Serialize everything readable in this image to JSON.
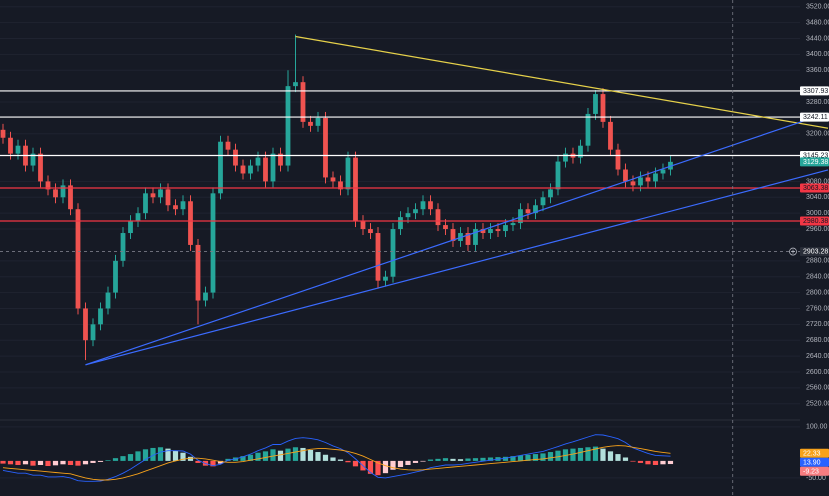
{
  "chart_data": {
    "type": "candlestick",
    "xlim": [
      -0.4,
      106.27
    ],
    "ylim": [
      2479,
      3537
    ],
    "yticks": [
      {
        "value": 3520,
        "label": "3520.00"
      },
      {
        "value": 3480,
        "label": "3480.00"
      },
      {
        "value": 3440,
        "label": "3440.00"
      },
      {
        "value": 3400,
        "label": "3400.00"
      },
      {
        "value": 3360,
        "label": "3360.00"
      },
      {
        "value": 3280,
        "label": "3280.00"
      },
      {
        "value": 3200,
        "label": "3200.00"
      },
      {
        "value": 3080,
        "label": "3080.00"
      },
      {
        "value": 3040,
        "label": "3040.00"
      },
      {
        "value": 3000,
        "label": "3000.00"
      },
      {
        "value": 2960,
        "label": "2960.00"
      },
      {
        "value": 2880,
        "label": "2880.00"
      },
      {
        "value": 2840,
        "label": "2840.00"
      },
      {
        "value": 2800,
        "label": "2800.00"
      },
      {
        "value": 2760,
        "label": "2760.00"
      },
      {
        "value": 2720,
        "label": "2720.00"
      },
      {
        "value": 2680,
        "label": "2680.00"
      },
      {
        "value": 2640,
        "label": "2640.00"
      },
      {
        "value": 2600,
        "label": "2600.00"
      },
      {
        "value": 2560,
        "label": "2560.00"
      },
      {
        "value": 2520,
        "label": "2520.00"
      }
    ],
    "grid": true,
    "up_color": "#26a69a",
    "down_color": "#ef5350",
    "open": [
      3210,
      3190,
      3150,
      3170,
      3120,
      3150,
      3080,
      3060,
      3040,
      3070,
      3010,
      2760,
      2680,
      2720,
      2760,
      2800,
      2880,
      2950,
      2980,
      3000,
      3050,
      3040,
      3060,
      3020,
      3010,
      3030,
      2920,
      2780,
      2800,
      3050,
      3180,
      3160,
      3120,
      3100,
      3120,
      3140,
      3080,
      3150,
      3120,
      3320,
      3330,
      3230,
      3220,
      3240,
      3090,
      3080,
      3060,
      3140,
      2980,
      2960,
      2950,
      2830,
      2840,
      2960,
      2990,
      3000,
      3010,
      3030,
      3010,
      2970,
      2960,
      2930,
      2950,
      2920,
      2960,
      2950,
      2960,
      2955,
      2970,
      2975,
      3010,
      3000,
      3020,
      3040,
      3060,
      3130,
      3150,
      3140,
      3170,
      3250,
      3300,
      3230,
      3160,
      3110,
      3080,
      3070,
      3090,
      3080,
      3100,
      3110
    ],
    "high": [
      3225,
      3205,
      3185,
      3185,
      3165,
      3165,
      3095,
      3075,
      3085,
      3085,
      3025,
      2775,
      2735,
      2775,
      2815,
      2895,
      2965,
      2995,
      3015,
      3065,
      3065,
      3075,
      3075,
      3035,
      3045,
      3045,
      2935,
      2815,
      3065,
      3195,
      3195,
      3175,
      3135,
      3135,
      3155,
      3155,
      3165,
      3165,
      3360,
      3450,
      3345,
      3245,
      3255,
      3255,
      3105,
      3095,
      3155,
      3155,
      2995,
      2975,
      2965,
      2855,
      2975,
      3005,
      3015,
      3025,
      3045,
      3045,
      3025,
      2985,
      2975,
      2965,
      2965,
      2975,
      2975,
      2975,
      2975,
      2985,
      2990,
      3025,
      3025,
      3035,
      3055,
      3075,
      3145,
      3165,
      3165,
      3185,
      3265,
      3310,
      3315,
      3245,
      3175,
      3125,
      3095,
      3105,
      3105,
      3115,
      3125,
      3145
    ],
    "low": [
      3175,
      3135,
      3135,
      3105,
      3105,
      3065,
      3045,
      3025,
      3025,
      2995,
      2745,
      2630,
      2665,
      2705,
      2745,
      2785,
      2865,
      2935,
      2965,
      2985,
      3025,
      3025,
      3005,
      2995,
      2995,
      2905,
      2720,
      2765,
      2785,
      3035,
      3145,
      3105,
      3085,
      3085,
      3105,
      3065,
      3065,
      3105,
      3105,
      3305,
      3215,
      3205,
      3205,
      3075,
      3065,
      3045,
      3045,
      2965,
      2945,
      2935,
      2810,
      2815,
      2825,
      2945,
      2975,
      2985,
      2995,
      2995,
      2955,
      2945,
      2915,
      2915,
      2905,
      2905,
      2935,
      2935,
      2940,
      2940,
      2955,
      2960,
      2985,
      2985,
      3005,
      3025,
      3045,
      3115,
      3125,
      3125,
      3155,
      3235,
      3215,
      3145,
      3095,
      3065,
      3055,
      3055,
      3065,
      3065,
      3085,
      3095
    ],
    "close": [
      3190,
      3150,
      3170,
      3120,
      3150,
      3080,
      3060,
      3040,
      3070,
      3010,
      2760,
      2680,
      2720,
      2760,
      2800,
      2880,
      2950,
      2980,
      3000,
      3050,
      3040,
      3060,
      3020,
      3010,
      3030,
      2920,
      2780,
      2800,
      3050,
      3180,
      3160,
      3120,
      3100,
      3120,
      3140,
      3080,
      3150,
      3120,
      3320,
      3330,
      3230,
      3220,
      3240,
      3090,
      3080,
      3060,
      3140,
      2980,
      2960,
      2950,
      2830,
      2840,
      2960,
      2990,
      3000,
      3010,
      3030,
      3010,
      2970,
      2960,
      2930,
      2950,
      2920,
      2960,
      2950,
      2960,
      2955,
      2970,
      2975,
      3010,
      3000,
      3020,
      3040,
      3060,
      3130,
      3150,
      3140,
      3170,
      3250,
      3300,
      3230,
      3160,
      3110,
      3080,
      3070,
      3090,
      3080,
      3100,
      3110,
      3129.38
    ],
    "price_lines": [
      {
        "value": 3307.93,
        "color": "#ffffff"
      },
      {
        "value": 3242.11,
        "color": "#ffffff"
      },
      {
        "value": 3145.23,
        "color": "#ffffff"
      },
      {
        "value": 3063.38,
        "color": "#f23645"
      },
      {
        "value": 2980.38,
        "color": "#f23645"
      }
    ],
    "trend_lines": [
      {
        "x": [
          39,
          110
        ],
        "y": [
          3445,
          3214
        ],
        "color": "#e6d14a"
      },
      {
        "x": [
          11,
          108.3
        ],
        "y": [
          2618,
          3242
        ],
        "color": "#3b6bff"
      },
      {
        "x": [
          11,
          110
        ],
        "y": [
          2618,
          3109
        ],
        "color": "#3b6bff"
      }
    ],
    "crosshair": {
      "x": 97.3,
      "y": 2903.28
    },
    "macd": {
      "ylim": [
        -103,
        120
      ],
      "yticks": [
        {
          "value": 100,
          "label": "100.00"
        },
        {
          "value": -50,
          "label": "-50.00"
        }
      ],
      "histogram_colors": [
        "#26a69a",
        "#b2dfdb",
        "#ff5252",
        "#ffcdd2"
      ],
      "histogram": [
        -8,
        -10,
        -12,
        -10,
        -14,
        -12,
        -15,
        -13,
        -10,
        -12,
        -14,
        -10,
        -6,
        -3,
        2,
        8,
        14,
        20,
        28,
        34,
        38,
        40,
        36,
        30,
        24,
        12,
        -6,
        -14,
        -16,
        -8,
        6,
        10,
        14,
        18,
        24,
        28,
        34,
        30,
        36,
        40,
        38,
        32,
        26,
        18,
        10,
        4,
        -4,
        -16,
        -28,
        -38,
        -42,
        -36,
        -26,
        -18,
        -12,
        -6,
        -2,
        4,
        6,
        8,
        6,
        5,
        7,
        8,
        9,
        10,
        11,
        12,
        14,
        16,
        18,
        20,
        22,
        26,
        30,
        34,
        36,
        38,
        40,
        42,
        36,
        28,
        20,
        10,
        -2,
        -6,
        -10,
        -12,
        -10,
        -9.23
      ],
      "macd_color": "#2962ff",
      "signal_color": "#f7a21b",
      "macd": [
        -28,
        -32,
        -36,
        -36,
        -42,
        -42,
        -47,
        -47,
        -46,
        -50,
        -58,
        -60,
        -60,
        -59,
        -54,
        -46,
        -36,
        -24,
        -10,
        4,
        16,
        26,
        30,
        30,
        29,
        20,
        2,
        -8,
        -14,
        -10,
        2,
        6,
        12,
        20,
        30,
        38,
        48,
        48,
        58,
        66,
        68,
        66,
        62,
        54,
        44,
        36,
        24,
        6,
        -14,
        -34,
        -48,
        -50,
        -46,
        -42,
        -38,
        -33,
        -28,
        -20,
        -16,
        -12,
        -12,
        -11,
        -7,
        -4,
        -1,
        2,
        5,
        8,
        12,
        16,
        20,
        24,
        28,
        35,
        42,
        50,
        56,
        63,
        70,
        77,
        76,
        71,
        65,
        54,
        38,
        30,
        22,
        16,
        15,
        13.9
      ],
      "signal": [
        -20,
        -22,
        -24,
        -26,
        -28,
        -30,
        -32,
        -34,
        -36,
        -38,
        -44,
        -50,
        -54,
        -56,
        -56,
        -54,
        -50,
        -44,
        -38,
        -30,
        -22,
        -14,
        -6,
        0,
        5,
        8,
        8,
        6,
        2,
        -2,
        -4,
        -4,
        -2,
        2,
        6,
        10,
        14,
        18,
        22,
        26,
        30,
        34,
        36,
        36,
        34,
        32,
        28,
        22,
        14,
        4,
        -6,
        -14,
        -20,
        -24,
        -26,
        -27,
        -26,
        -24,
        -22,
        -20,
        -18,
        -16,
        -14,
        -12,
        -10,
        -8,
        -6,
        -4,
        -2,
        0,
        2,
        4,
        6,
        9,
        12,
        16,
        20,
        25,
        30,
        35,
        40,
        43,
        45,
        44,
        40,
        36,
        32,
        28,
        25,
        22.33
      ],
      "tags": [
        {
          "value": 22.33,
          "color": "#f7a21b"
        },
        {
          "value": 13.9,
          "label": "13.90",
          "color": "#2962ff"
        },
        {
          "value": -9.23,
          "color": "#f77c80"
        }
      ]
    }
  }
}
